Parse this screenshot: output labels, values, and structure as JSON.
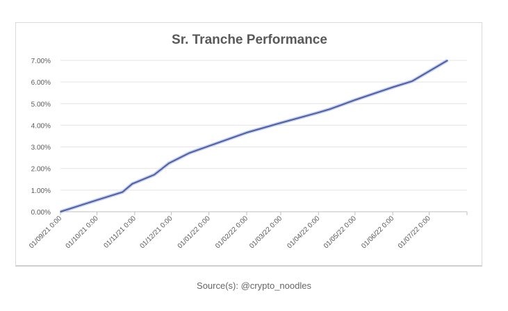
{
  "chart_data": {
    "type": "line",
    "title": "Sr. Tranche Performance",
    "xlabel": "",
    "ylabel": "",
    "x_ticks": [
      "01/09/21 0:00",
      "01/10/21 0:00",
      "01/11/21 0:00",
      "01/12/21 0:00",
      "01/01/22 0:00",
      "01/02/22 0:00",
      "01/03/22 0:00",
      "01/04/22 0:00",
      "01/05/22 0:00",
      "01/06/22 0:00",
      "01/07/22 0:00"
    ],
    "x_tick_dates": [
      "2021-09-01",
      "2021-10-01",
      "2021-11-01",
      "2021-12-01",
      "2022-01-01",
      "2022-02-01",
      "2022-03-01",
      "2022-04-01",
      "2022-05-01",
      "2022-06-01",
      "2022-07-01"
    ],
    "xlim": [
      "2021-09-01",
      "2022-08-01"
    ],
    "y_ticks": [
      "0.00%",
      "1.00%",
      "2.00%",
      "3.00%",
      "4.00%",
      "5.00%",
      "6.00%",
      "7.00%"
    ],
    "ylim": [
      0,
      7
    ],
    "y_unit": "%",
    "grid": true,
    "series": [
      {
        "color": "#4a5fa8",
        "x": [
          "2021-09-01",
          "2021-10-01",
          "2021-10-22",
          "2021-10-30",
          "2021-11-17",
          "2021-11-29",
          "2021-12-16",
          "2022-01-01",
          "2022-02-01",
          "2022-03-01",
          "2022-04-01",
          "2022-04-10",
          "2022-05-01",
          "2022-06-01",
          "2022-06-17",
          "2022-07-16"
        ],
        "values": [
          0.0,
          0.54,
          0.91,
          1.29,
          1.71,
          2.24,
          2.72,
          3.04,
          3.66,
          4.11,
          4.59,
          4.74,
          5.17,
          5.76,
          6.04,
          7.0
        ]
      }
    ]
  },
  "source": "Source(s): @crypto_noodles"
}
